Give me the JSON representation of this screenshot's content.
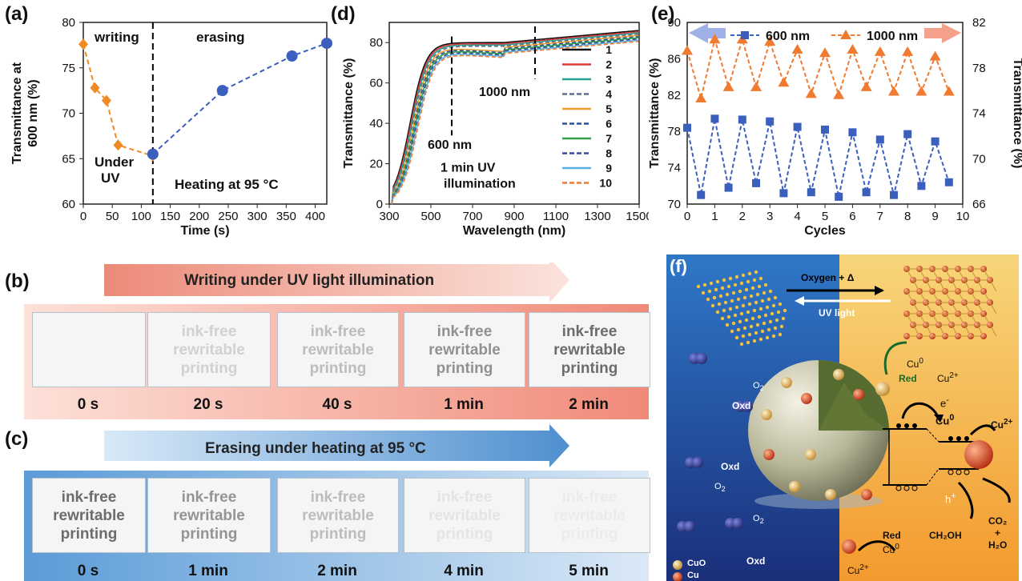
{
  "panels": {
    "a": "(a)",
    "b": "(b)",
    "c": "(c)",
    "d": "(d)",
    "e": "(e)",
    "f": "(f)"
  },
  "chart_data": [
    {
      "id": "a",
      "type": "line",
      "xlabel": "Time (s)",
      "ylabel": "Transmittance at 600 nm (%)",
      "xlim": [
        0,
        420
      ],
      "ylim": [
        60,
        80
      ],
      "xticks": [
        0,
        50,
        100,
        150,
        200,
        250,
        300,
        350,
        400
      ],
      "yticks": [
        60,
        65,
        70,
        75,
        80
      ],
      "series": [
        {
          "label": "writing",
          "color": "#f08a24",
          "marker": "diamond",
          "x": [
            0,
            20,
            40,
            60,
            120
          ],
          "y": [
            77.6,
            72.8,
            71.4,
            66.5,
            65.3
          ]
        },
        {
          "label": "erasing",
          "color": "#3b5fbd",
          "marker": "circle",
          "x": [
            120,
            240,
            360,
            420
          ],
          "y": [
            65.5,
            72.5,
            76.3,
            77.7
          ]
        }
      ],
      "annotations": {
        "writing": "writing",
        "erasing": "erasing",
        "under1": "Under",
        "under2": "UV",
        "heating": "Heating at 95 °C"
      }
    },
    {
      "id": "d",
      "type": "line",
      "xlabel": "Wavelength (nm)",
      "ylabel": "Transmittance (%)",
      "xlim": [
        300,
        1500
      ],
      "ylim": [
        0,
        90
      ],
      "xticks": [
        300,
        500,
        700,
        900,
        1100,
        1300,
        1500
      ],
      "yticks": [
        0,
        20,
        40,
        60,
        80
      ],
      "series": [
        {
          "name": "1",
          "color": "#111111",
          "dashed": false
        },
        {
          "name": "2",
          "color": "#e03a3a",
          "dashed": false
        },
        {
          "name": "3",
          "color": "#2aa198",
          "dashed": false
        },
        {
          "name": "4",
          "color": "#5a6f8a",
          "dashed": true
        },
        {
          "name": "5",
          "color": "#f0a030",
          "dashed": false
        },
        {
          "name": "6",
          "color": "#2c4f9e",
          "dashed": true
        },
        {
          "name": "7",
          "color": "#33a04a",
          "dashed": false
        },
        {
          "name": "8",
          "color": "#3a4a9a",
          "dashed": true
        },
        {
          "name": "9",
          "color": "#5bb0e0",
          "dashed": false
        },
        {
          "name": "10",
          "color": "#f07a30",
          "dashed": true
        }
      ],
      "annotations": {
        "nm600": "600 nm",
        "nm1000": "1000 nm",
        "uv1": "1 min  UV",
        "uv2": "illumination"
      }
    },
    {
      "id": "e",
      "type": "line",
      "xlabel": "Cycles",
      "ylabel": "Transmittance (%)",
      "ylabel_right": "Transmittance (%)",
      "xlim": [
        0,
        10
      ],
      "ylim": [
        70,
        90
      ],
      "ylim_right": [
        66,
        82
      ],
      "xticks": [
        0,
        1,
        2,
        3,
        4,
        5,
        6,
        7,
        8,
        9,
        10
      ],
      "yticks": [
        70,
        74,
        78,
        82,
        86,
        90
      ],
      "yticks_right": [
        66,
        70,
        74,
        78,
        82
      ],
      "series": [
        {
          "name": "600 nm",
          "axis": "left",
          "color": "#3b5fbd",
          "marker": "square",
          "x": [
            0,
            0.5,
            1,
            1.5,
            2,
            2.5,
            3,
            3.5,
            4,
            4.5,
            5,
            5.5,
            6,
            6.5,
            7,
            7.5,
            8,
            8.5,
            9,
            9.5
          ],
          "y": [
            78.4,
            71,
            79.4,
            71.8,
            79.3,
            72.3,
            79.1,
            71.2,
            78.5,
            71.3,
            78.2,
            70.8,
            77.9,
            71.3,
            77.1,
            71,
            77.7,
            72,
            76.9,
            72.4
          ]
        },
        {
          "name": "1000 nm",
          "axis": "right",
          "color": "#f07a30",
          "marker": "triangle",
          "x": [
            0,
            0.5,
            1,
            1.5,
            2,
            2.5,
            3,
            3.5,
            4,
            4.5,
            5,
            5.5,
            6,
            6.5,
            7,
            7.5,
            8,
            8.5,
            9,
            9.5
          ],
          "y": [
            79.5,
            75.3,
            80.5,
            76.3,
            80.5,
            76.3,
            80.3,
            76.7,
            79.6,
            75.7,
            79.3,
            75.6,
            79.6,
            76.3,
            79.4,
            75.9,
            79.4,
            75.9,
            79,
            75.9
          ]
        }
      ]
    }
  ],
  "panel_b": {
    "title": "Writing under UV light illumination",
    "frames": [
      {
        "time": "0 s",
        "lines": [
          "",
          "",
          ""
        ],
        "opacity": 0.0
      },
      {
        "time": "20 s",
        "lines": [
          "ink-free",
          "rewritable",
          "printing"
        ],
        "opacity": 0.22
      },
      {
        "time": "40 s",
        "lines": [
          "ink-free",
          "rewritable",
          "printing"
        ],
        "opacity": 0.35
      },
      {
        "time": "1 min",
        "lines": [
          "ink-free",
          "rewritable",
          "printing"
        ],
        "opacity": 0.62
      },
      {
        "time": "2 min",
        "lines": [
          "ink-free",
          "rewritable",
          "printing"
        ],
        "opacity": 0.85
      }
    ]
  },
  "panel_c": {
    "title": "Erasing under heating at 95 °C",
    "frames": [
      {
        "time": "0 s",
        "lines": [
          "ink-free",
          "rewritable",
          "printing"
        ],
        "opacity": 0.85
      },
      {
        "time": "1 min",
        "lines": [
          "ink-free",
          "rewritable",
          "printing"
        ],
        "opacity": 0.6
      },
      {
        "time": "2 min",
        "lines": [
          "ink-free",
          "rewritable",
          "printing"
        ],
        "opacity": 0.35
      },
      {
        "time": "4 min",
        "lines": [
          "ink-free",
          "rewritable",
          "printing"
        ],
        "opacity": 0.1
      },
      {
        "time": "5 min",
        "lines": [
          "ink-free",
          "rewritable",
          "printing"
        ],
        "opacity": 0.06
      }
    ]
  },
  "panel_f": {
    "oxygen": "Oxygen + Δ",
    "uv": "UV light",
    "cu0": "Cu",
    "cu0_sup": "0",
    "cu2": "Cu",
    "cu2_sup": "2+",
    "red": "Red",
    "oxd": "Oxd",
    "o2": "O",
    "o2_sub": "2",
    "e": "e",
    "e_sup": "-",
    "h": "h",
    "h_sup": "+",
    "ch2oh": "CH₂OH",
    "co2": "CO₂",
    "plus": "+",
    "h2o": "H₂O",
    "legend_cuo": "CuO",
    "legend_cu": "Cu"
  }
}
